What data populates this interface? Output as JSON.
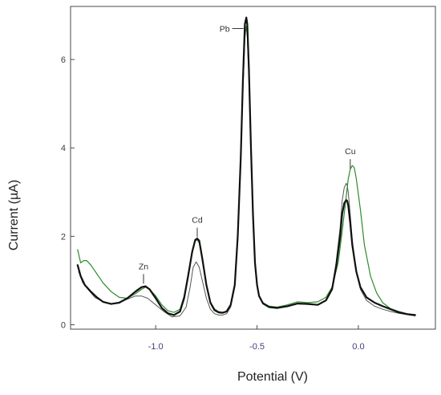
{
  "chart_data": {
    "type": "line",
    "title": "",
    "xlabel": "Potential (V)",
    "ylabel": "Current (µA)",
    "xlim": [
      -1.42,
      0.38
    ],
    "ylim": [
      -0.1,
      7.2
    ],
    "x_ticks": [
      {
        "value": -1.0,
        "label": "-1.0"
      },
      {
        "value": -0.5,
        "label": "-0.5"
      },
      {
        "value": 0.0,
        "label": "0.0"
      }
    ],
    "y_ticks": [
      {
        "value": 0,
        "label": "0"
      },
      {
        "value": 2,
        "label": "2"
      },
      {
        "value": 4,
        "label": "4"
      },
      {
        "value": 6,
        "label": "6"
      }
    ],
    "grid": false,
    "legend": "none",
    "annotations": [
      {
        "text": "Zn",
        "x": -1.06,
        "y": 1.2,
        "marker": "vertical-tick"
      },
      {
        "text": "Cd",
        "x": -0.795,
        "y": 2.25,
        "marker": "vertical-tick"
      },
      {
        "text": "Pb",
        "x": -0.555,
        "y": 6.7,
        "marker": "horizontal-tick"
      },
      {
        "text": "Cu",
        "x": -0.04,
        "y": 3.8,
        "marker": "vertical-tick"
      }
    ],
    "series": [
      {
        "color": "#111111",
        "width": 2.2,
        "x": [
          -1.385,
          -1.37,
          -1.35,
          -1.32,
          -1.29,
          -1.26,
          -1.22,
          -1.18,
          -1.14,
          -1.1,
          -1.07,
          -1.05,
          -1.03,
          -1.0,
          -0.97,
          -0.94,
          -0.91,
          -0.88,
          -0.86,
          -0.84,
          -0.82,
          -0.805,
          -0.795,
          -0.785,
          -0.77,
          -0.75,
          -0.73,
          -0.71,
          -0.69,
          -0.67,
          -0.65,
          -0.63,
          -0.61,
          -0.595,
          -0.58,
          -0.57,
          -0.56,
          -0.553,
          -0.548,
          -0.54,
          -0.53,
          -0.52,
          -0.51,
          -0.5,
          -0.49,
          -0.47,
          -0.44,
          -0.4,
          -0.35,
          -0.3,
          -0.25,
          -0.2,
          -0.16,
          -0.13,
          -0.11,
          -0.09,
          -0.08,
          -0.07,
          -0.06,
          -0.055,
          -0.05,
          -0.04,
          -0.03,
          -0.01,
          0.01,
          0.04,
          0.08,
          0.12,
          0.16,
          0.2,
          0.24,
          0.28
        ],
        "y": [
          1.35,
          1.1,
          0.9,
          0.75,
          0.62,
          0.52,
          0.47,
          0.5,
          0.6,
          0.75,
          0.85,
          0.87,
          0.8,
          0.6,
          0.38,
          0.26,
          0.22,
          0.3,
          0.6,
          1.1,
          1.65,
          1.92,
          1.95,
          1.9,
          1.5,
          0.9,
          0.5,
          0.33,
          0.28,
          0.27,
          0.3,
          0.45,
          0.9,
          2.0,
          3.8,
          5.5,
          6.8,
          6.95,
          6.8,
          5.8,
          4.0,
          2.5,
          1.4,
          0.9,
          0.65,
          0.48,
          0.4,
          0.38,
          0.42,
          0.48,
          0.47,
          0.45,
          0.55,
          0.8,
          1.3,
          2.0,
          2.5,
          2.75,
          2.82,
          2.8,
          2.7,
          2.3,
          1.8,
          1.2,
          0.85,
          0.62,
          0.5,
          0.42,
          0.35,
          0.28,
          0.24,
          0.22
        ]
      },
      {
        "color": "#555555",
        "width": 1.0,
        "x": [
          -1.38,
          -1.36,
          -1.33,
          -1.3,
          -1.26,
          -1.22,
          -1.18,
          -1.14,
          -1.1,
          -1.07,
          -1.04,
          -1.0,
          -0.96,
          -0.92,
          -0.88,
          -0.85,
          -0.83,
          -0.815,
          -0.8,
          -0.785,
          -0.77,
          -0.75,
          -0.73,
          -0.71,
          -0.69,
          -0.67,
          -0.65,
          -0.63,
          -0.61,
          -0.595,
          -0.58,
          -0.57,
          -0.56,
          -0.554,
          -0.548,
          -0.54,
          -0.53,
          -0.52,
          -0.51,
          -0.5,
          -0.49,
          -0.47,
          -0.44,
          -0.4,
          -0.35,
          -0.3,
          -0.25,
          -0.2,
          -0.16,
          -0.13,
          -0.11,
          -0.09,
          -0.08,
          -0.07,
          -0.06,
          -0.055,
          -0.05,
          -0.04,
          -0.03,
          -0.01,
          0.01,
          0.04,
          0.08,
          0.12,
          0.16,
          0.2,
          0.24,
          0.28
        ],
        "y": [
          1.2,
          0.95,
          0.78,
          0.62,
          0.52,
          0.47,
          0.5,
          0.58,
          0.65,
          0.65,
          0.6,
          0.45,
          0.3,
          0.18,
          0.2,
          0.4,
          0.85,
          1.3,
          1.42,
          1.3,
          1.0,
          0.6,
          0.35,
          0.25,
          0.22,
          0.22,
          0.25,
          0.4,
          0.85,
          1.9,
          3.7,
          5.4,
          6.7,
          6.9,
          6.75,
          5.8,
          4.0,
          2.5,
          1.4,
          0.9,
          0.65,
          0.48,
          0.4,
          0.38,
          0.42,
          0.48,
          0.47,
          0.45,
          0.55,
          0.85,
          1.4,
          2.2,
          2.8,
          3.1,
          3.2,
          3.15,
          3.0,
          2.5,
          1.9,
          1.2,
          0.8,
          0.55,
          0.42,
          0.35,
          0.3,
          0.26,
          0.23,
          0.2
        ]
      },
      {
        "color": "#2e8b2e",
        "width": 1.2,
        "x": [
          -1.385,
          -1.37,
          -1.355,
          -1.34,
          -1.32,
          -1.29,
          -1.26,
          -1.22,
          -1.18,
          -1.14,
          -1.1,
          -1.07,
          -1.05,
          -1.03,
          -1.0,
          -0.97,
          -0.94,
          -0.91,
          -0.88,
          -0.86,
          -0.84,
          -0.82,
          -0.805,
          -0.795,
          -0.785,
          -0.77,
          -0.75,
          -0.73,
          -0.71,
          -0.69,
          -0.67,
          -0.65,
          -0.63,
          -0.61,
          -0.595,
          -0.58,
          -0.57,
          -0.56,
          -0.553,
          -0.548,
          -0.54,
          -0.53,
          -0.52,
          -0.51,
          -0.5,
          -0.49,
          -0.47,
          -0.44,
          -0.4,
          -0.35,
          -0.3,
          -0.25,
          -0.2,
          -0.16,
          -0.13,
          -0.1,
          -0.08,
          -0.06,
          -0.05,
          -0.04,
          -0.03,
          -0.02,
          -0.01,
          0.01,
          0.03,
          0.06,
          0.09,
          0.12,
          0.16,
          0.2,
          0.24,
          0.28
        ],
        "y": [
          1.7,
          1.4,
          1.45,
          1.45,
          1.35,
          1.15,
          0.95,
          0.75,
          0.62,
          0.6,
          0.7,
          0.8,
          0.85,
          0.8,
          0.65,
          0.45,
          0.32,
          0.28,
          0.35,
          0.65,
          1.15,
          1.65,
          1.9,
          1.92,
          1.85,
          1.45,
          0.9,
          0.52,
          0.36,
          0.3,
          0.28,
          0.31,
          0.45,
          0.88,
          1.95,
          3.7,
          5.3,
          6.5,
          6.75,
          6.55,
          5.6,
          3.8,
          2.4,
          1.35,
          0.9,
          0.65,
          0.5,
          0.42,
          0.4,
          0.45,
          0.52,
          0.5,
          0.52,
          0.62,
          0.85,
          1.4,
          2.1,
          2.9,
          3.3,
          3.52,
          3.6,
          3.55,
          3.3,
          2.6,
          1.8,
          1.1,
          0.72,
          0.5,
          0.36,
          0.3,
          0.25,
          0.22
        ]
      }
    ]
  }
}
